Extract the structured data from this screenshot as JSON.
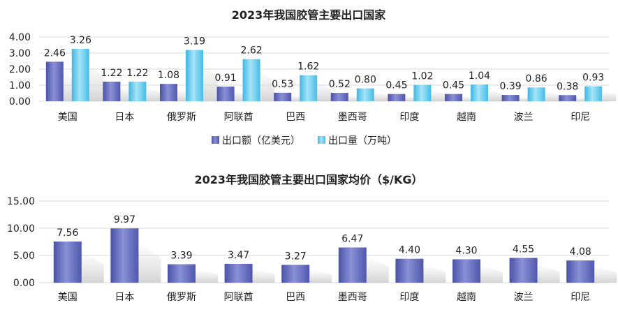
{
  "colors": {
    "export_value": "#5b63b8",
    "export_volume": "#58c6ec",
    "grid": "#d9d9d9",
    "text": "#222222"
  },
  "chart_data": [
    {
      "type": "bar",
      "title": "2023年我国胶管主要出口国家",
      "categories": [
        "美国",
        "日本",
        "俄罗斯",
        "阿联酋",
        "巴西",
        "墨西哥",
        "印度",
        "越南",
        "波兰",
        "印尼"
      ],
      "series": [
        {
          "name": "出口额（亿美元）",
          "values": [
            2.46,
            1.22,
            1.08,
            0.91,
            0.53,
            0.52,
            0.45,
            0.45,
            0.39,
            0.38
          ],
          "labels": [
            "2.46",
            "1.22",
            "1.08",
            "0.91",
            "0.53",
            "0.52",
            "0.45",
            "0.45",
            "0.39",
            "0.38"
          ]
        },
        {
          "name": "出口量（万吨）",
          "values": [
            3.26,
            1.22,
            3.19,
            2.62,
            1.62,
            0.8,
            1.02,
            1.04,
            0.86,
            0.93
          ],
          "labels": [
            "3.26",
            "1.22",
            "3.19",
            "2.62",
            "1.62",
            "0.80",
            "1.02",
            "1.04",
            "0.86",
            "0.93"
          ]
        }
      ],
      "ylim": [
        0,
        4
      ],
      "yticks": [
        "0.00",
        "1.00",
        "2.00",
        "3.00",
        "4.00"
      ],
      "grid": true,
      "legend": "bottom"
    },
    {
      "type": "bar",
      "title": "2023年我国胶管主要出口国家均价（$/KG）",
      "categories": [
        "美国",
        "日本",
        "俄罗斯",
        "阿联酋",
        "巴西",
        "墨西哥",
        "印度",
        "越南",
        "波兰",
        "印尼"
      ],
      "series": [
        {
          "values": [
            7.56,
            9.97,
            3.39,
            3.47,
            3.27,
            6.47,
            4.4,
            4.3,
            4.55,
            4.08
          ],
          "labels": [
            "7.56",
            "9.97",
            "3.39",
            "3.47",
            "3.27",
            "6.47",
            "4.40",
            "4.30",
            "4.55",
            "4.08"
          ]
        }
      ],
      "ylim": [
        0,
        15
      ],
      "yticks": [
        "0.00",
        "5.00",
        "10.00",
        "15.00"
      ],
      "grid": true,
      "legend": "none"
    }
  ]
}
